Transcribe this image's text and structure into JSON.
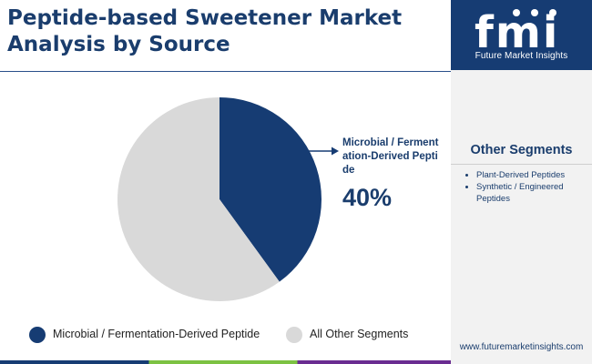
{
  "header": {
    "title": "Peptide-based Sweetener Market Analysis by Source"
  },
  "brand": {
    "logo_text": "fmi",
    "tagline": "Future Market Insights",
    "url": "www.futuremarketinsights.com"
  },
  "other_segments": {
    "heading": "Other Segments",
    "items": [
      "Plant-Derived Peptides",
      "Synthetic / Engineered Peptides"
    ]
  },
  "callout": {
    "label": "Microbial / Fermentation-Derived Peptide",
    "value": "40%"
  },
  "colors": {
    "primary": "#163c73",
    "secondary": "#d9d9d9",
    "accent_text": "#1a3d6d"
  },
  "chart_data": {
    "type": "pie",
    "title": "Peptide-based Sweetener Market Analysis by Source",
    "categories": [
      "Microbial / Fermentation-Derived Peptide",
      "All Other Segments"
    ],
    "values": [
      40,
      60
    ],
    "colors": [
      "#163c73",
      "#d9d9d9"
    ],
    "legend_position": "bottom"
  }
}
